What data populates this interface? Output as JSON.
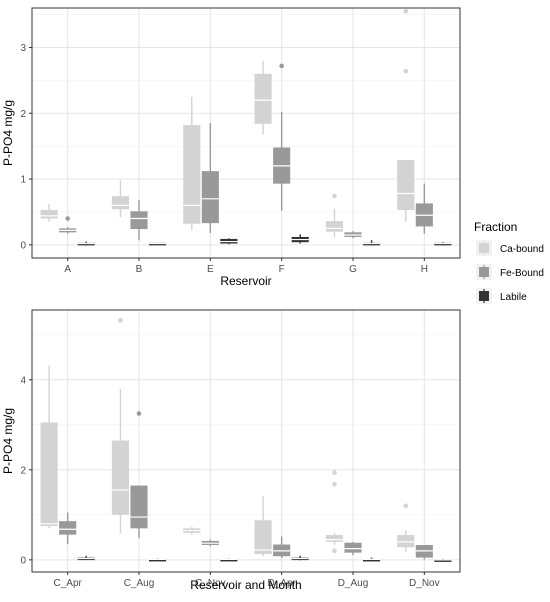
{
  "chart_data": [
    {
      "type": "box",
      "xlabel": "Reservoir",
      "ylabel": "P-PO4 mg/g",
      "ylim": [
        -0.2,
        3.6
      ],
      "yticks": [
        0,
        1,
        2,
        3
      ],
      "grid": true,
      "categories": [
        "A",
        "B",
        "E",
        "F",
        "G",
        "H"
      ],
      "series": [
        {
          "name": "Ca-bound",
          "color": "#d3d3d3",
          "boxes": [
            {
              "q1": 0.4,
              "median": 0.44,
              "q3": 0.53,
              "whisker_low": 0.35,
              "whisker_high": 0.62,
              "outliers": []
            },
            {
              "q1": 0.54,
              "median": 0.6,
              "q3": 0.74,
              "whisker_low": 0.42,
              "whisker_high": 0.98,
              "outliers": []
            },
            {
              "q1": 0.32,
              "median": 0.6,
              "q3": 1.82,
              "whisker_low": 0.22,
              "whisker_high": 2.25,
              "outliers": []
            },
            {
              "q1": 1.84,
              "median": 2.2,
              "q3": 2.6,
              "whisker_low": 1.68,
              "whisker_high": 2.8,
              "outliers": []
            },
            {
              "q1": 0.2,
              "median": 0.25,
              "q3": 0.36,
              "whisker_low": 0.12,
              "whisker_high": 0.55,
              "outliers": [
                0.74
              ]
            },
            {
              "q1": 0.53,
              "median": 0.78,
              "q3": 1.29,
              "whisker_low": 0.35,
              "whisker_high": 1.29,
              "outliers": [
                2.64,
                3.55
              ]
            }
          ]
        },
        {
          "name": "Fe-Bound",
          "color": "#999999",
          "boxes": [
            {
              "q1": 0.19,
              "median": 0.22,
              "q3": 0.25,
              "whisker_low": 0.17,
              "whisker_high": 0.27,
              "outliers": [
                0.4
              ]
            },
            {
              "q1": 0.24,
              "median": 0.4,
              "q3": 0.51,
              "whisker_low": 0.07,
              "whisker_high": 0.68,
              "outliers": []
            },
            {
              "q1": 0.33,
              "median": 0.7,
              "q3": 1.12,
              "whisker_low": 0.18,
              "whisker_high": 1.85,
              "outliers": []
            },
            {
              "q1": 0.93,
              "median": 1.2,
              "q3": 1.48,
              "whisker_low": 0.52,
              "whisker_high": 2.02,
              "outliers": [
                2.72
              ]
            },
            {
              "q1": 0.12,
              "median": 0.15,
              "q3": 0.19,
              "whisker_low": 0.1,
              "whisker_high": 0.21,
              "outliers": []
            },
            {
              "q1": 0.28,
              "median": 0.45,
              "q3": 0.63,
              "whisker_low": 0.17,
              "whisker_high": 0.93,
              "outliers": []
            }
          ]
        },
        {
          "name": "Labile",
          "color": "#333333",
          "boxes": [
            {
              "q1": 0.01,
              "median": 0.02,
              "q3": 0.03,
              "whisker_low": -0.01,
              "whisker_high": 0.05,
              "outliers": []
            },
            {
              "q1": 0.01,
              "median": 0.02,
              "q3": 0.03,
              "whisker_low": 0.0,
              "whisker_high": 0.03,
              "outliers": []
            },
            {
              "q1": 0.02,
              "median": 0.05,
              "q3": 0.09,
              "whisker_low": 0.01,
              "whisker_high": 0.1,
              "outliers": []
            },
            {
              "q1": 0.04,
              "median": 0.08,
              "q3": 0.12,
              "whisker_low": 0.02,
              "whisker_high": 0.16,
              "outliers": []
            },
            {
              "q1": 0.0,
              "median": 0.02,
              "q3": 0.03,
              "whisker_low": -0.01,
              "whisker_high": 0.07,
              "outliers": []
            },
            {
              "q1": 0.0,
              "median": 0.02,
              "q3": 0.03,
              "whisker_low": -0.01,
              "whisker_high": 0.04,
              "outliers": []
            }
          ]
        }
      ]
    },
    {
      "type": "box",
      "xlabel": "Reservoir and Month",
      "ylabel": "P-PO4 mg/g",
      "ylim": [
        -0.27,
        5.55
      ],
      "yticks": [
        0,
        2,
        4
      ],
      "grid": true,
      "categories": [
        "C_Apr",
        "C_Aug",
        "C_Nov",
        "D_Apr",
        "D_Aug",
        "D_Nov"
      ],
      "series": [
        {
          "name": "Ca-bound",
          "color": "#d3d3d3",
          "boxes": [
            {
              "q1": 0.75,
              "median": 0.8,
              "q3": 3.05,
              "whisker_low": 0.7,
              "whisker_high": 4.32,
              "outliers": []
            },
            {
              "q1": 1.0,
              "median": 1.55,
              "q3": 2.65,
              "whisker_low": 0.58,
              "whisker_high": 3.8,
              "outliers": [
                5.32
              ]
            },
            {
              "q1": 0.6,
              "median": 0.65,
              "q3": 0.7,
              "whisker_low": 0.56,
              "whisker_high": 0.73,
              "outliers": []
            },
            {
              "q1": 0.13,
              "median": 0.22,
              "q3": 0.88,
              "whisker_low": 0.08,
              "whisker_high": 1.42,
              "outliers": []
            },
            {
              "q1": 0.4,
              "median": 0.45,
              "q3": 0.55,
              "whisker_low": 0.33,
              "whisker_high": 0.6,
              "outliers": [
                0.2,
                1.68,
                1.94
              ]
            },
            {
              "q1": 0.28,
              "median": 0.4,
              "q3": 0.55,
              "whisker_low": 0.18,
              "whisker_high": 0.66,
              "outliers": [
                1.2
              ]
            }
          ]
        },
        {
          "name": "Fe-Bound",
          "color": "#999999",
          "boxes": [
            {
              "q1": 0.56,
              "median": 0.68,
              "q3": 0.86,
              "whisker_low": 0.35,
              "whisker_high": 1.05,
              "outliers": []
            },
            {
              "q1": 0.7,
              "median": 0.95,
              "q3": 1.65,
              "whisker_low": 0.48,
              "whisker_high": 1.65,
              "outliers": [
                3.25
              ]
            },
            {
              "q1": 0.33,
              "median": 0.37,
              "q3": 0.42,
              "whisker_low": 0.3,
              "whisker_high": 0.45,
              "outliers": []
            },
            {
              "q1": 0.08,
              "median": 0.2,
              "q3": 0.34,
              "whisker_low": 0.04,
              "whisker_high": 0.52,
              "outliers": []
            },
            {
              "q1": 0.16,
              "median": 0.25,
              "q3": 0.38,
              "whisker_low": 0.1,
              "whisker_high": 0.4,
              "outliers": []
            },
            {
              "q1": 0.05,
              "median": 0.2,
              "q3": 0.33,
              "whisker_low": 0.01,
              "whisker_high": 0.33,
              "outliers": []
            }
          ]
        },
        {
          "name": "Labile",
          "color": "#333333",
          "boxes": [
            {
              "q1": 0.01,
              "median": 0.03,
              "q3": 0.05,
              "whisker_low": 0.0,
              "whisker_high": 0.09,
              "outliers": []
            },
            {
              "q1": 0.0,
              "median": 0.01,
              "q3": 0.02,
              "whisker_low": 0.0,
              "whisker_high": 0.03,
              "outliers": []
            },
            {
              "q1": 0.0,
              "median": 0.01,
              "q3": 0.02,
              "whisker_low": 0.0,
              "whisker_high": 0.03,
              "outliers": []
            },
            {
              "q1": 0.0,
              "median": 0.03,
              "q3": 0.05,
              "whisker_low": -0.01,
              "whisker_high": 0.09,
              "outliers": []
            },
            {
              "q1": -0.01,
              "median": 0.01,
              "q3": 0.02,
              "whisker_low": -0.03,
              "whisker_high": 0.05,
              "outliers": []
            },
            {
              "q1": -0.01,
              "median": 0.0,
              "q3": 0.01,
              "whisker_low": -0.02,
              "whisker_high": 0.02,
              "outliers": []
            }
          ]
        }
      ]
    }
  ],
  "legend": {
    "title": "Fraction",
    "placement": "right",
    "items": [
      {
        "label": "Ca-bound",
        "color": "#d3d3d3"
      },
      {
        "label": "Fe-Bound",
        "color": "#999999"
      },
      {
        "label": "Labile",
        "color": "#333333"
      }
    ]
  },
  "style": {
    "panel_background": "#ffffff",
    "panel_border": "#333333",
    "grid_major": "#e5e5e5",
    "grid_minor": "#f2f2f2",
    "whisker_color": "#cccccc",
    "median_color": "#ffffff"
  }
}
